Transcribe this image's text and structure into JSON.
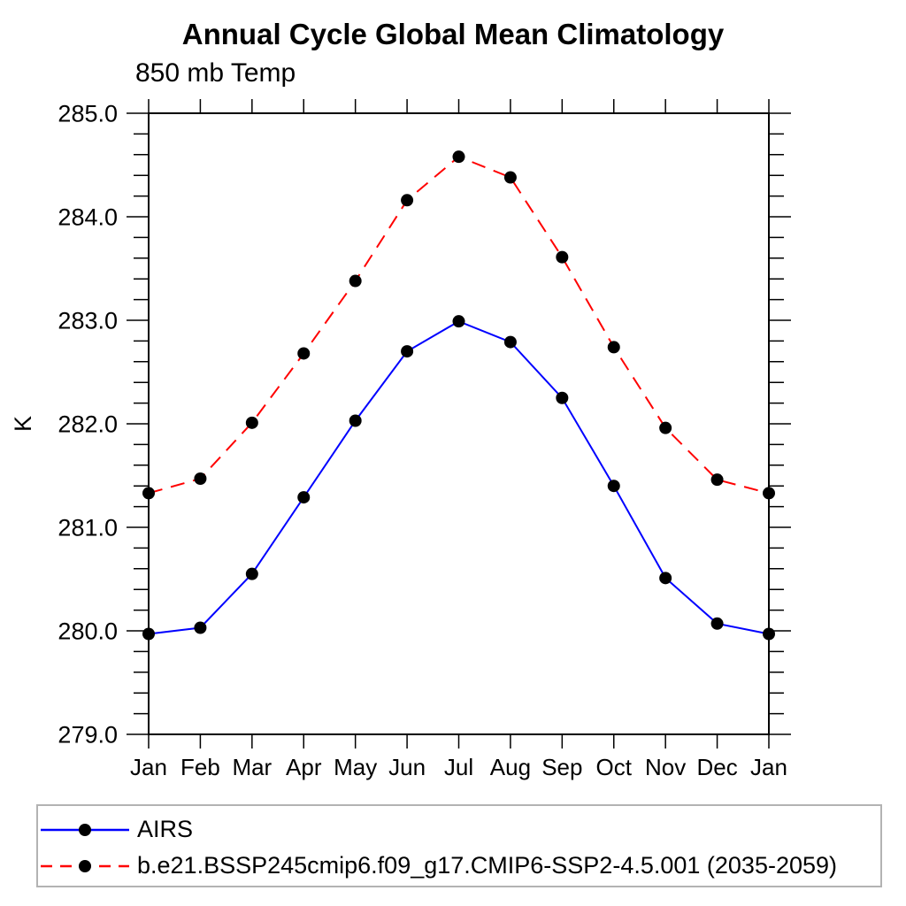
{
  "chart_data": {
    "type": "line",
    "title": "Annual Cycle Global Mean Climatology",
    "subtitle": "850 mb Temp",
    "ylabel": "K",
    "xlabel": "",
    "categories": [
      "Jan",
      "Feb",
      "Mar",
      "Apr",
      "May",
      "Jun",
      "Jul",
      "Aug",
      "Sep",
      "Oct",
      "Nov",
      "Dec",
      "Jan"
    ],
    "series": [
      {
        "name": "AIRS",
        "color": "#0000ff",
        "line_style": "solid",
        "marker": "filled-circle",
        "marker_color": "#000000",
        "values": [
          279.97,
          280.03,
          280.55,
          281.29,
          282.03,
          282.7,
          282.99,
          282.79,
          282.25,
          281.4,
          280.51,
          280.07,
          279.97
        ]
      },
      {
        "name": "b.e21.BSSP245cmip6.f09_g17.CMIP6-SSP2-4.5.001 (2035-2059)",
        "color": "#ff0000",
        "line_style": "dashed",
        "marker": "filled-circle",
        "marker_color": "#000000",
        "values": [
          281.33,
          281.47,
          282.01,
          282.68,
          283.38,
          284.16,
          284.58,
          284.38,
          283.61,
          282.74,
          281.96,
          281.46,
          281.33
        ]
      }
    ],
    "ylim": [
      279.0,
      285.0
    ],
    "y_major_step": 1.0,
    "y_minor_step": 0.2,
    "y_tick_labels": [
      "279.0",
      "280.0",
      "281.0",
      "282.0",
      "283.0",
      "284.0",
      "285.0"
    ],
    "grid": false,
    "legend_position": "bottom-left-box",
    "axis_color": "#000000"
  }
}
